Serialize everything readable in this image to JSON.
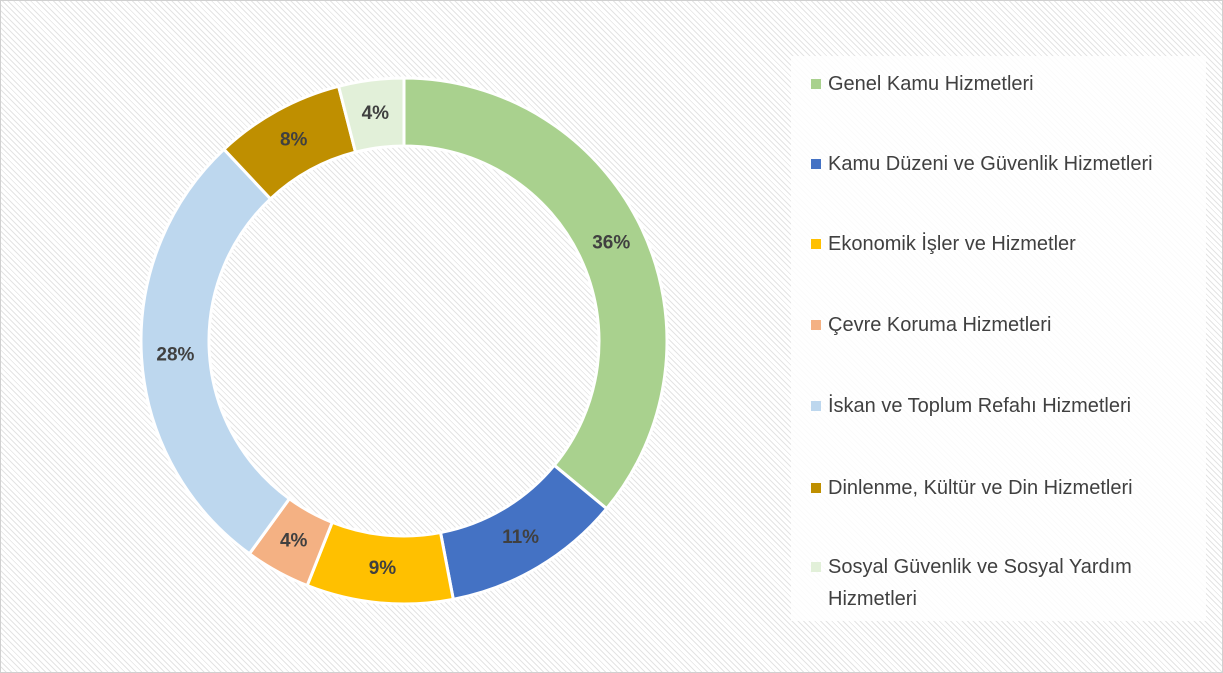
{
  "chart_data": {
    "type": "donut",
    "categories": [
      "Genel Kamu Hizmetleri",
      "Kamu Düzeni ve Güvenlik Hizmetleri",
      "Ekonomik İşler ve Hizmetler",
      "Çevre Koruma Hizmetleri",
      "İskan ve Toplum Refahı Hizmetleri",
      "Dinlenme, Kültür ve Din Hizmetleri",
      "Sosyal Güvenlik ve Sosyal Yardım Hizmetleri"
    ],
    "values": [
      36,
      11,
      9,
      4,
      28,
      8,
      4
    ],
    "value_labels": [
      "36%",
      "11%",
      "9%",
      "4%",
      "28%",
      "8%",
      "4%"
    ],
    "colors": [
      "#a9d18e",
      "#4472c4",
      "#ffc000",
      "#f4b183",
      "#bdd7ee",
      "#bf8f00",
      "#e2f0d9"
    ],
    "legend": "right"
  }
}
